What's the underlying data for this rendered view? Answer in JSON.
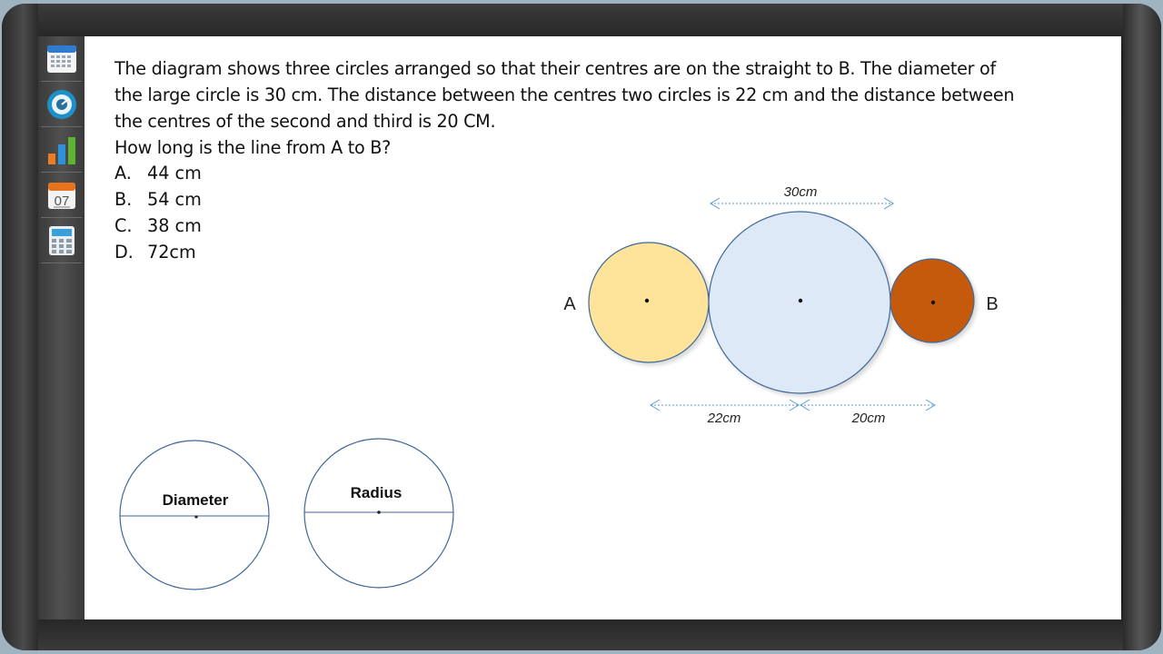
{
  "question": {
    "lines": [
      "The diagram shows three circles arranged so that their centres are on the straight to B. The diameter of",
      "the large circle is 30 cm. The distance between the centres two circles is 22 cm and the distance between",
      "the centres of the second and third is 20 CM.",
      "How long is the line from A to B?"
    ]
  },
  "options": [
    {
      "letter": "A.",
      "text": "44 cm"
    },
    {
      "letter": "B.",
      "text": "54 cm"
    },
    {
      "letter": "C.",
      "text": "38 cm"
    },
    {
      "letter": "D.",
      "text": "72cm"
    }
  ],
  "diagram": {
    "point_a": "A",
    "point_b": "B",
    "dim_large": "30cm",
    "dim_first": "22cm",
    "dim_second": "20cm",
    "colors": {
      "small_left": "#fde49a",
      "large": "#dde9f6",
      "small_right": "#c55a11",
      "outline": "#3f6797",
      "arrow": "#5b9bd5"
    }
  },
  "reference": {
    "diameter_label": "Diameter",
    "radius_label": "Radius"
  },
  "sidebar": {
    "tools": [
      "calendar-grid-icon",
      "clock-icon",
      "bar-chart-icon",
      "calendar-date-icon",
      "calculator-icon"
    ],
    "calendar_day": "07"
  }
}
